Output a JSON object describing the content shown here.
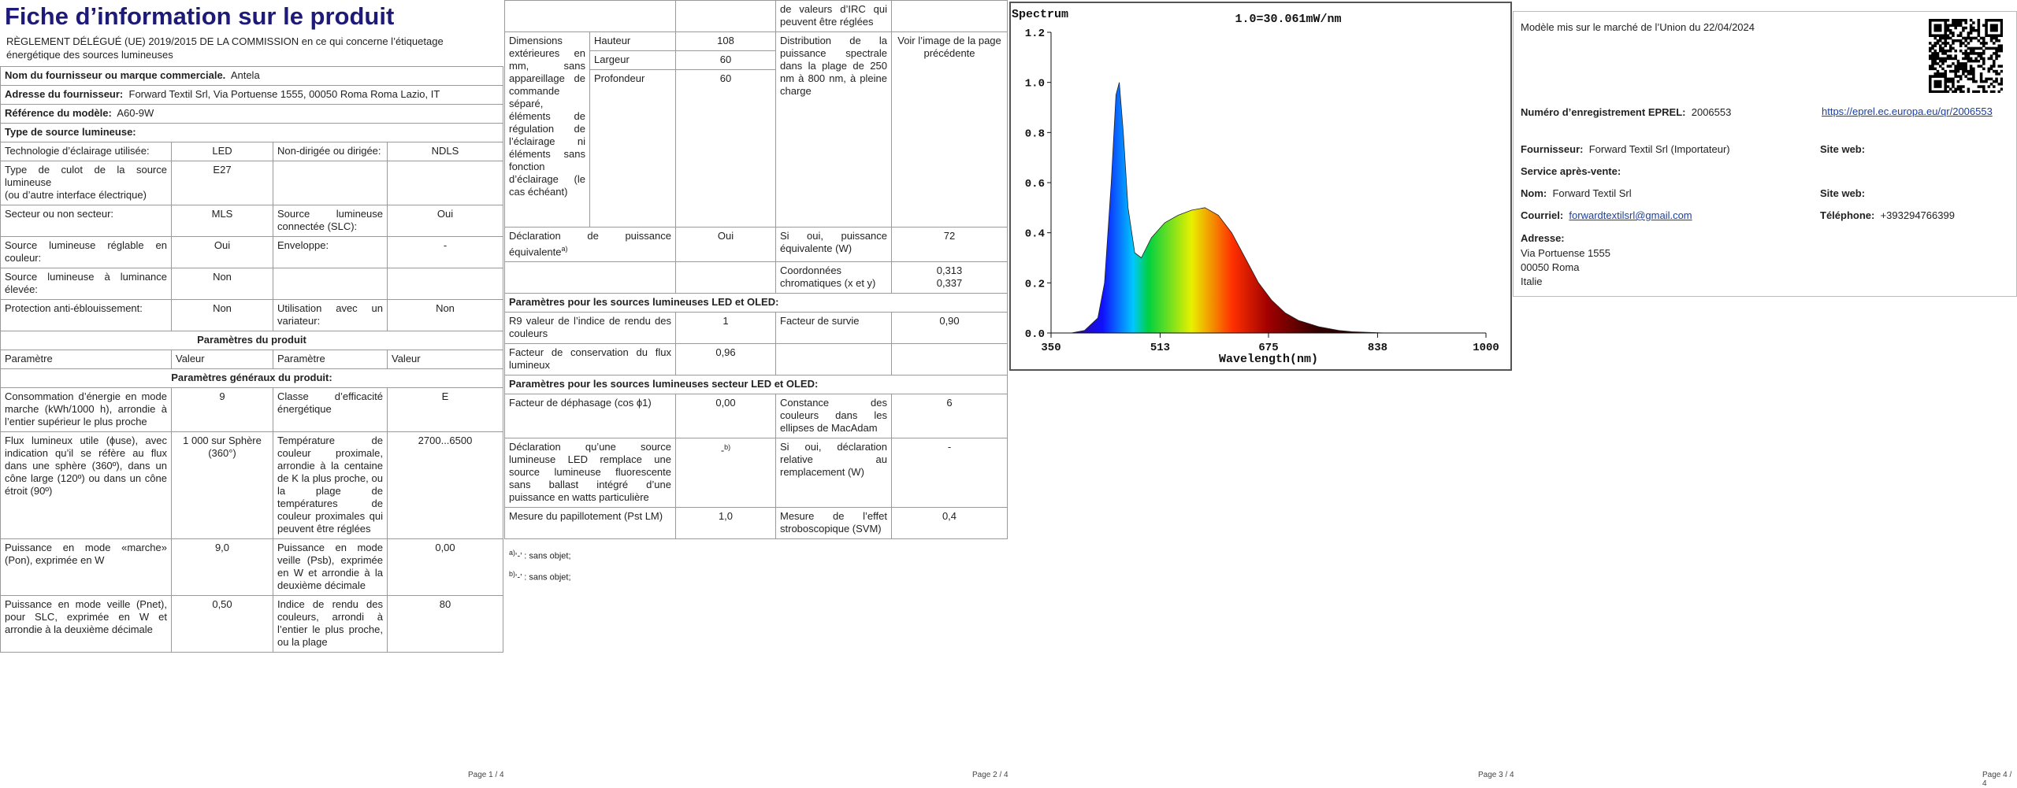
{
  "page1": {
    "title": "Fiche d’information sur le produit",
    "regulation": "RÈGLEMENT DÉLÉGUÉ (UE) 2019/2015 DE LA COMMISSION en ce qui concerne l’étiquetage énergétique des sources lumineuses",
    "info": [
      {
        "label": "Nom du fournisseur ou marque commerciale.",
        "value": "Antela"
      },
      {
        "label": "Adresse du fournisseur:",
        "value": "Forward Textil Srl, Via Portuense 1555, 00050 Roma Roma Lazio, IT"
      },
      {
        "label": "Référence du modèle:",
        "value": "A60-9W"
      },
      {
        "label": "Type de source lumineuse:",
        "value": null
      }
    ],
    "source_rows": [
      [
        "Technologie d’éclairage utilisée:",
        "LED",
        "Non-dirigée ou dirigée:",
        "NDLS"
      ],
      [
        "Type de culot de la source lumineuse\n(ou d’autre interface électrique)",
        "E27",
        null,
        null
      ],
      [
        "Secteur ou non secteur:",
        "MLS",
        "Source lumineuse connectée (SLC):",
        "Oui"
      ],
      [
        "Source lumineuse réglable en couleur:",
        "Oui",
        "Enveloppe:",
        "-"
      ],
      [
        "Source lumineuse à luminance élevée:",
        "Non",
        null,
        null
      ],
      [
        "Protection anti-éblouissement:",
        "Non",
        "Utilisation avec un variateur:",
        "Non"
      ]
    ],
    "section_title": "Paramètres du produit",
    "header": [
      "Paramètre",
      "Valeur",
      "Paramètre",
      "Valeur"
    ],
    "subsection": "Paramètres généraux du produit:",
    "params": [
      [
        "Consommation d’énergie en mode marche (kWh/1000 h), arrondie à l’entier supérieur le plus proche",
        "9",
        "Classe d’efficacité énergétique",
        "E"
      ],
      [
        "Flux lumineux utile (ɸuse), avec indication qu’il se réfère au flux dans une sphère (360º), dans un cône large (120º) ou dans un cône étroit (90º)",
        "1 000 sur Sphère (360°)",
        "Température de couleur proximale, arrondie à la centaine de K la plus proche, ou la plage de températures de couleur proximales qui peuvent être réglées",
        "2700...6500"
      ],
      [
        "Puissance en mode «marche» (Pon), exprimée en W",
        "9,0",
        "Puissance en mode veille (Psb), exprimée en W et arrondie à la deuxième décimale",
        "0,00"
      ],
      [
        "Puissance en mode veille (Pnet), pour SLC, exprimée en W et arrondie à la deuxième décimale",
        "0,50",
        "Indice de rendu des couleurs, arrondi à l’entier le plus proche, ou la plage",
        "80"
      ]
    ],
    "footer": "Page 1 / 4"
  },
  "page2": {
    "continued": "de valeurs d’IRC qui peuvent être réglées",
    "dimensions": {
      "label": "Dimensions extérieures en mm, sans appareillage de commande séparé, éléments de régulation de l’éclairage ni éléments sans fonction d’éclairage (le cas échéant)",
      "rows": [
        [
          "Hauteur",
          "108"
        ],
        [
          "Largeur",
          "60"
        ],
        [
          "Profondeur",
          "60"
        ]
      ],
      "spectral_label": "Distribution de la puissance spectrale dans la plage de 250 nm à 800 nm, à pleine charge",
      "spectral_value": "Voir l’image de la page précédente"
    },
    "rows_a": [
      [
        {
          "text": "Déclaration de puissance équivalente",
          "sup": "a)"
        },
        "Oui",
        "Si oui, puissance équivalente (W)",
        "72"
      ],
      [
        null,
        null,
        "Coordonnées chromatiques (x et y)",
        "0,313\n0,337"
      ]
    ],
    "section_led": "Paramètres pour les sources lumineuses LED et OLED:",
    "rows_led": [
      [
        "R9 valeur de l’indice de rendu des couleurs",
        "1",
        "Facteur de survie",
        "0,90"
      ],
      [
        "Facteur de conservation du flux lumineux",
        "0,96",
        null,
        null
      ]
    ],
    "section_mains": "Paramètres pour les sources lumineuses secteur LED et OLED:",
    "rows_mains": [
      [
        "Facteur de déphasage (cos ϕ1)",
        "0,00",
        "Constance des couleurs dans les ellipses de MacAdam",
        "6"
      ],
      [
        "Déclaration qu’une source lumineuse LED remplace une source lumineuse fluorescente sans ballast intégré d’une puissance en watts particulière",
        {
          "text": "-",
          "sup": "b)"
        },
        "Si oui, déclaration relative au remplacement (W)",
        "-"
      ],
      [
        "Mesure du papillotement (Pst LM)",
        "1,0",
        "Mesure de l’effet stroboscopique (SVM)",
        "0,4"
      ]
    ],
    "footnotes": [
      {
        "sup": "a)",
        "text": "‘-’ : sans objet;"
      },
      {
        "sup": "b)",
        "text": "‘-’ : sans objet;"
      }
    ],
    "footer": "Page 2 / 4"
  },
  "chart_data": {
    "type": "area",
    "title": "Spectrum",
    "annotation": "1.0=30.061mW/nm",
    "x_label": "Wavelength(nm)",
    "x": [
      350,
      380,
      400,
      420,
      430,
      440,
      447,
      452,
      458,
      465,
      475,
      485,
      500,
      520,
      540,
      560,
      580,
      600,
      620,
      640,
      660,
      680,
      700,
      720,
      750,
      780,
      800,
      850,
      1000
    ],
    "values": [
      0,
      0,
      0.01,
      0.06,
      0.2,
      0.6,
      0.95,
      1.0,
      0.8,
      0.5,
      0.32,
      0.3,
      0.38,
      0.44,
      0.47,
      0.49,
      0.5,
      0.47,
      0.4,
      0.3,
      0.2,
      0.13,
      0.08,
      0.05,
      0.025,
      0.01,
      0.005,
      0,
      0
    ],
    "xlim": [
      350,
      1000
    ],
    "xticks": [
      350,
      513,
      675,
      838,
      1000
    ],
    "ylim": [
      0,
      1.2
    ],
    "yticks": [
      {
        "value": 0,
        "label": "0.0"
      },
      0.2,
      0.4,
      0.6,
      0.8,
      {
        "value": 1,
        "label": "1.0"
      },
      1.2
    ],
    "footer": "Page 3 / 4"
  },
  "page4": {
    "date_line": "Modèle mis sur le marché de l’Union du 22/04/2024",
    "eprel": {
      "label": "Numéro d’enregistrement EPREL:",
      "value": "2006553",
      "link": "https://eprel.ec.europa.eu/qr/2006553"
    },
    "supplier": {
      "label": "Fournisseur:",
      "value": "Forward Textil Srl (Importateur)"
    },
    "website_1": "Site web:",
    "service": "Service après-vente:",
    "name": {
      "label": "Nom:",
      "value": "Forward Textil Srl"
    },
    "website_2": "Site web:",
    "email": {
      "label": "Courriel:",
      "value": "forwardtextilsrl@gmail.com"
    },
    "phone": {
      "label": "Téléphone:",
      "value": "+393294766399"
    },
    "address": {
      "label": "Adresse:",
      "lines": [
        "Via Portuense 1555",
        "00050 Roma",
        "Italie"
      ]
    },
    "footer": "Page 4 / 4"
  }
}
